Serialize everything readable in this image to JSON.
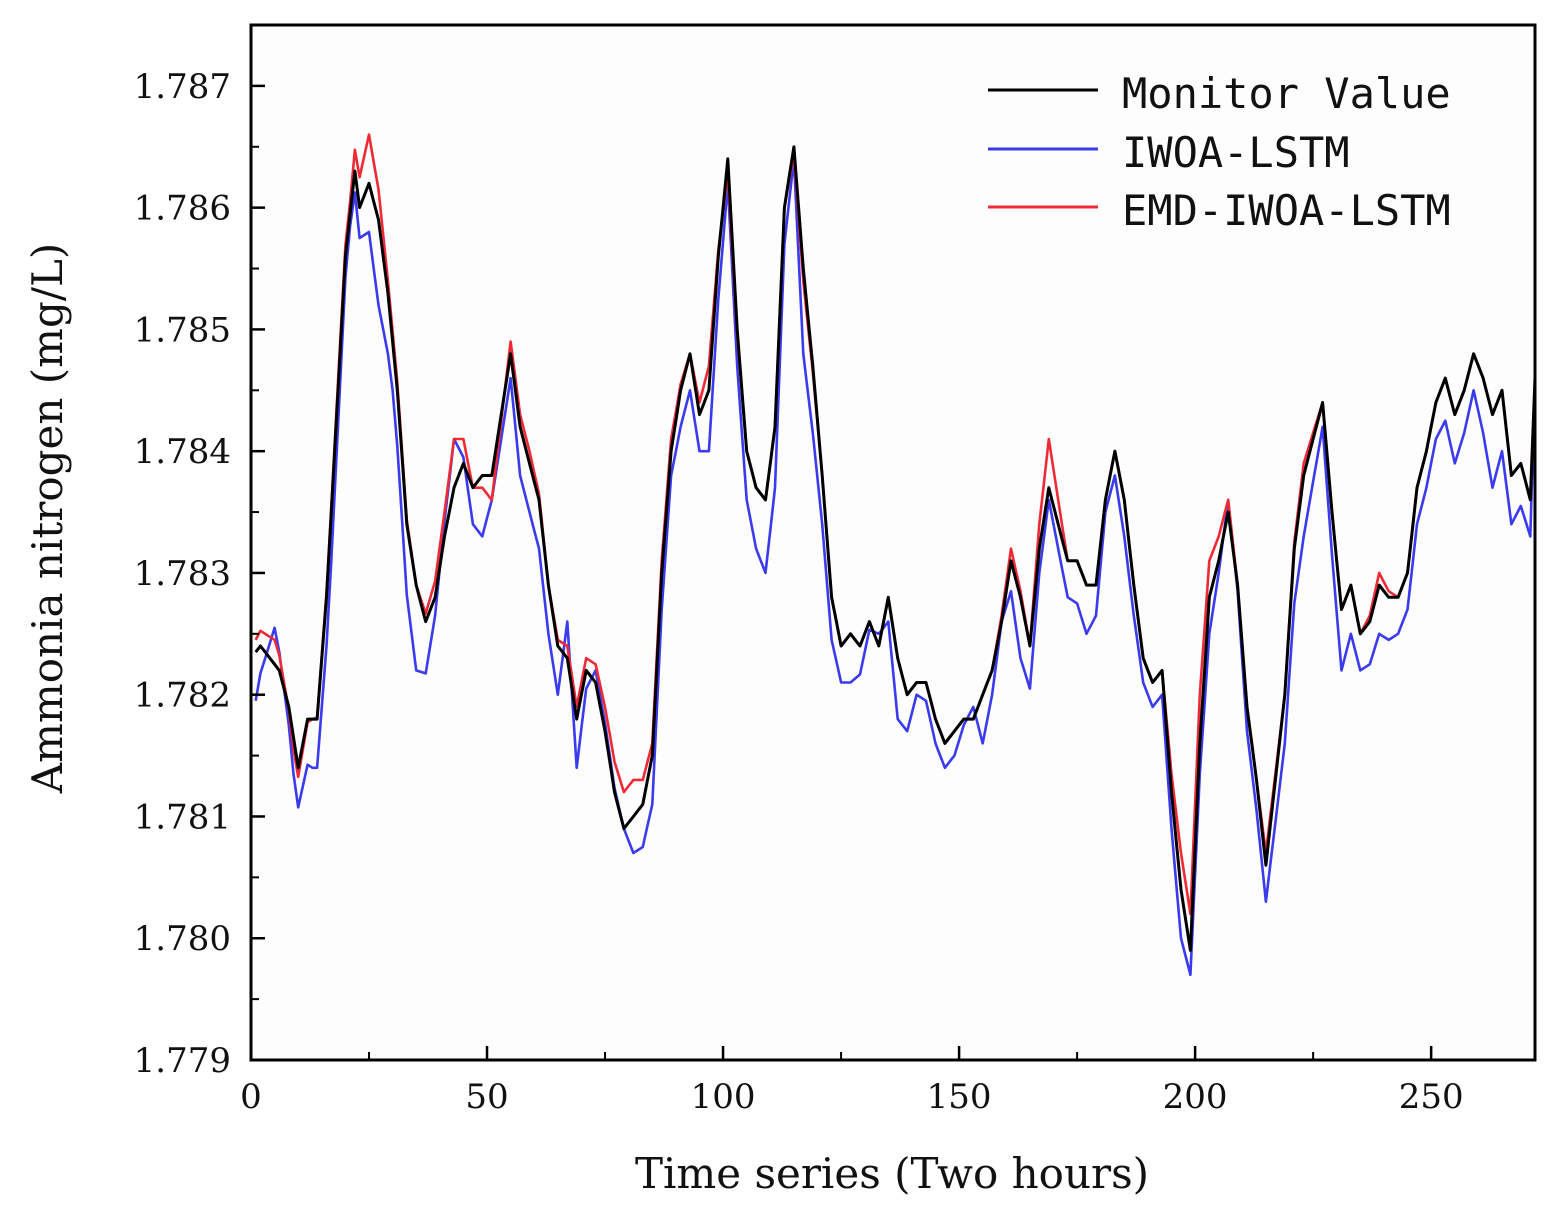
{
  "chart_data": {
    "type": "line",
    "title": "",
    "xlabel": "Time series (Two hours)",
    "ylabel": "Ammonia nitrogen (mg/L)",
    "xlim": [
      0,
      272
    ],
    "ylim": [
      1.779,
      1.7875
    ],
    "xticks": [
      0,
      50,
      100,
      150,
      200,
      250
    ],
    "xtick_labels": [
      "0",
      "50",
      "100",
      "150",
      "200",
      "250"
    ],
    "yticks": [
      1.779,
      1.78,
      1.781,
      1.782,
      1.783,
      1.784,
      1.785,
      1.786,
      1.787
    ],
    "ytick_labels": [
      "1.779",
      "1.780",
      "1.781",
      "1.782",
      "1.783",
      "1.784",
      "1.785",
      "1.786",
      "1.787"
    ],
    "grid": false,
    "legend_position": "top-right",
    "anchors": [
      [
        0,
        1.7823
      ],
      [
        2,
        1.7824
      ],
      [
        4,
        1.7823
      ],
      [
        6,
        1.7822
      ],
      [
        8,
        1.7819
      ],
      [
        10,
        1.7814
      ],
      [
        12,
        1.7818
      ],
      [
        14,
        1.7818
      ],
      [
        16,
        1.7828
      ],
      [
        18,
        1.7842
      ],
      [
        20,
        1.7856
      ],
      [
        22,
        1.7863
      ],
      [
        23,
        1.786
      ],
      [
        25,
        1.7862
      ],
      [
        27,
        1.7859
      ],
      [
        29,
        1.7853
      ],
      [
        31,
        1.7845
      ],
      [
        33,
        1.7834
      ],
      [
        35,
        1.7829
      ],
      [
        37,
        1.7826
      ],
      [
        39,
        1.7828
      ],
      [
        41,
        1.7833
      ],
      [
        43,
        1.7837
      ],
      [
        45,
        1.7839
      ],
      [
        47,
        1.7837
      ],
      [
        49,
        1.7838
      ],
      [
        51,
        1.7838
      ],
      [
        53,
        1.7843
      ],
      [
        55,
        1.7848
      ],
      [
        57,
        1.7842
      ],
      [
        59,
        1.7839
      ],
      [
        61,
        1.7836
      ],
      [
        63,
        1.7829
      ],
      [
        65,
        1.7824
      ],
      [
        67,
        1.7823
      ],
      [
        69,
        1.7818
      ],
      [
        71,
        1.7822
      ],
      [
        73,
        1.7821
      ],
      [
        75,
        1.7817
      ],
      [
        77,
        1.7812
      ],
      [
        79,
        1.7809
      ],
      [
        81,
        1.781
      ],
      [
        83,
        1.7811
      ],
      [
        85,
        1.7815
      ],
      [
        87,
        1.783
      ],
      [
        89,
        1.784
      ],
      [
        91,
        1.7845
      ],
      [
        93,
        1.7848
      ],
      [
        95,
        1.7843
      ],
      [
        97,
        1.7845
      ],
      [
        99,
        1.7856
      ],
      [
        101,
        1.7864
      ],
      [
        103,
        1.785
      ],
      [
        105,
        1.784
      ],
      [
        107,
        1.7837
      ],
      [
        109,
        1.7836
      ],
      [
        111,
        1.7842
      ],
      [
        113,
        1.786
      ],
      [
        115,
        1.7865
      ],
      [
        117,
        1.7855
      ],
      [
        119,
        1.7847
      ],
      [
        121,
        1.7838
      ],
      [
        123,
        1.7828
      ],
      [
        125,
        1.7824
      ],
      [
        127,
        1.7825
      ],
      [
        129,
        1.7824
      ],
      [
        131,
        1.7826
      ],
      [
        133,
        1.7824
      ],
      [
        135,
        1.7828
      ],
      [
        137,
        1.7823
      ],
      [
        139,
        1.782
      ],
      [
        141,
        1.7821
      ],
      [
        143,
        1.7821
      ],
      [
        145,
        1.7818
      ],
      [
        147,
        1.7816
      ],
      [
        149,
        1.7817
      ],
      [
        151,
        1.7818
      ],
      [
        153,
        1.7818
      ],
      [
        155,
        1.782
      ],
      [
        157,
        1.7822
      ],
      [
        159,
        1.7826
      ],
      [
        161,
        1.7831
      ],
      [
        163,
        1.7828
      ],
      [
        165,
        1.7824
      ],
      [
        167,
        1.7832
      ],
      [
        169,
        1.7837
      ],
      [
        171,
        1.7834
      ],
      [
        173,
        1.7831
      ],
      [
        175,
        1.7831
      ],
      [
        177,
        1.7829
      ],
      [
        179,
        1.7829
      ],
      [
        181,
        1.7836
      ],
      [
        183,
        1.784
      ],
      [
        185,
        1.7836
      ],
      [
        187,
        1.7829
      ],
      [
        189,
        1.7823
      ],
      [
        191,
        1.7821
      ],
      [
        193,
        1.7822
      ],
      [
        195,
        1.7812
      ],
      [
        197,
        1.7804
      ],
      [
        199,
        1.7799
      ],
      [
        201,
        1.7816
      ],
      [
        203,
        1.7828
      ],
      [
        205,
        1.7831
      ],
      [
        207,
        1.7835
      ],
      [
        209,
        1.7829
      ],
      [
        211,
        1.7819
      ],
      [
        213,
        1.7813
      ],
      [
        215,
        1.7806
      ],
      [
        217,
        1.7813
      ],
      [
        219,
        1.782
      ],
      [
        221,
        1.7832
      ],
      [
        223,
        1.7838
      ],
      [
        225,
        1.7841
      ],
      [
        227,
        1.7844
      ],
      [
        229,
        1.7835
      ],
      [
        231,
        1.7827
      ],
      [
        233,
        1.7829
      ],
      [
        235,
        1.7825
      ],
      [
        237,
        1.7826
      ],
      [
        239,
        1.7829
      ],
      [
        241,
        1.7828
      ],
      [
        243,
        1.7828
      ],
      [
        245,
        1.783
      ],
      [
        247,
        1.7837
      ],
      [
        249,
        1.784
      ],
      [
        251,
        1.7844
      ],
      [
        253,
        1.7846
      ],
      [
        255,
        1.7843
      ],
      [
        257,
        1.7845
      ],
      [
        259,
        1.7848
      ],
      [
        261,
        1.7846
      ],
      [
        263,
        1.7843
      ],
      [
        265,
        1.7845
      ],
      [
        267,
        1.7838
      ],
      [
        269,
        1.7839
      ],
      [
        271,
        1.7836
      ],
      [
        272,
        1.7846
      ]
    ],
    "series": [
      {
        "name": "Monitor Value",
        "color": "#000000",
        "offsets": [
          [
            1,
            0.0
          ]
        ]
      },
      {
        "name": "IWOA-LSTM",
        "color": "#3a3aee",
        "offsets": [
          [
            1,
            -0.0004
          ],
          [
            5,
            0.0003
          ],
          [
            9,
            -0.0003
          ],
          [
            13,
            -0.0004
          ],
          [
            17,
            -0.0004
          ],
          [
            21,
            -0.0001
          ],
          [
            25,
            -0.0004
          ],
          [
            27,
            -0.0007
          ],
          [
            30,
            -0.0004
          ],
          [
            35,
            -0.0007
          ],
          [
            43,
            0.0004
          ],
          [
            47,
            -0.0003
          ],
          [
            49,
            -0.0005
          ],
          [
            51,
            -0.0002
          ],
          [
            55,
            -0.0002
          ],
          [
            57,
            -0.0004
          ],
          [
            61,
            -0.0004
          ],
          [
            65,
            -0.0004
          ],
          [
            67,
            0.0003
          ],
          [
            69,
            -0.0004
          ],
          [
            73,
            0.0001
          ],
          [
            79,
            0.0
          ],
          [
            81,
            -0.0003
          ],
          [
            85,
            -0.0004
          ],
          [
            89,
            -0.0002
          ],
          [
            91,
            -0.0003
          ],
          [
            95,
            -0.0003
          ],
          [
            97,
            -0.0005
          ],
          [
            101,
            -0.0002
          ],
          [
            105,
            -0.0004
          ],
          [
            109,
            -0.0006
          ],
          [
            111,
            -0.0005
          ],
          [
            115,
            -0.0001
          ],
          [
            117,
            -0.0007
          ],
          [
            121,
            -0.0004
          ],
          [
            125,
            -0.0003
          ],
          [
            127,
            -0.0004
          ],
          [
            133,
            0.0001
          ],
          [
            137,
            -0.0005
          ],
          [
            141,
            -0.0001
          ],
          [
            145,
            -0.0002
          ],
          [
            149,
            -0.0002
          ],
          [
            153,
            0.0001
          ],
          [
            155,
            -0.0004
          ],
          [
            159,
            0.0
          ],
          [
            163,
            -0.0005
          ],
          [
            167,
            -0.0002
          ],
          [
            169,
            -0.0001
          ],
          [
            173,
            -0.0003
          ],
          [
            177,
            -0.0004
          ],
          [
            181,
            -0.0001
          ],
          [
            185,
            -0.0003
          ],
          [
            189,
            -0.0002
          ],
          [
            193,
            -0.0002
          ],
          [
            197,
            -0.0004
          ],
          [
            199,
            -0.0002
          ],
          [
            203,
            -0.0003
          ],
          [
            207,
            0.0001
          ],
          [
            211,
            -0.0002
          ],
          [
            215,
            -0.0003
          ],
          [
            219,
            -0.0004
          ],
          [
            223,
            -0.0005
          ],
          [
            227,
            -0.0002
          ],
          [
            231,
            -0.0005
          ],
          [
            235,
            -0.0003
          ],
          [
            239,
            -0.0004
          ],
          [
            243,
            -0.0003
          ],
          [
            247,
            -0.0003
          ],
          [
            251,
            -0.0003
          ],
          [
            255,
            -0.0004
          ],
          [
            259,
            -0.0003
          ],
          [
            263,
            -0.0006
          ],
          [
            267,
            -0.0004
          ],
          [
            271,
            -0.0003
          ],
          [
            272,
            0.0
          ]
        ]
      },
      {
        "name": "EMD-IWOA-LSTM",
        "color": "#ee2a36",
        "offsets": [
          [
            1,
            0.0001
          ],
          [
            5,
            0.0002
          ],
          [
            9,
            -0.0001
          ],
          [
            13,
            0.0
          ],
          [
            21,
            0.0001
          ],
          [
            25,
            0.0004
          ],
          [
            29,
            0.0001
          ],
          [
            35,
            0.0
          ],
          [
            41,
            0.0002
          ],
          [
            43,
            0.0004
          ],
          [
            47,
            0.0
          ],
          [
            51,
            -0.0002
          ],
          [
            55,
            0.0001
          ],
          [
            59,
            0.0001
          ],
          [
            63,
            0.0
          ],
          [
            67,
            0.0001
          ],
          [
            71,
            0.0001
          ],
          [
            75,
            0.0002
          ],
          [
            79,
            0.0003
          ],
          [
            81,
            0.0003
          ],
          [
            85,
            0.0001
          ],
          [
            89,
            0.0001
          ],
          [
            93,
            0.0
          ],
          [
            97,
            0.0002
          ],
          [
            101,
            -0.0001
          ],
          [
            105,
            0.0
          ],
          [
            109,
            0.0
          ],
          [
            113,
            0.0
          ],
          [
            117,
            -0.0001
          ],
          [
            121,
            0.0
          ],
          [
            125,
            0.0
          ],
          [
            129,
            0.0
          ],
          [
            133,
            0.0
          ],
          [
            137,
            0.0
          ],
          [
            141,
            0.0
          ],
          [
            145,
            0.0
          ],
          [
            149,
            0.0
          ],
          [
            153,
            0.0
          ],
          [
            157,
            0.0
          ],
          [
            161,
            0.0001
          ],
          [
            165,
            0.0
          ],
          [
            169,
            0.0004
          ],
          [
            173,
            0.0
          ],
          [
            177,
            0.0
          ],
          [
            181,
            0.0
          ],
          [
            185,
            0.0
          ],
          [
            189,
            0.0
          ],
          [
            193,
            0.0
          ],
          [
            197,
            0.0003
          ],
          [
            199,
            0.0003
          ],
          [
            201,
            0.0004
          ],
          [
            205,
            0.0002
          ],
          [
            209,
            0.0
          ],
          [
            213,
            0.0
          ],
          [
            215,
            0.0001
          ],
          [
            219,
            0.0
          ],
          [
            223,
            0.0001
          ],
          [
            227,
            0.0
          ],
          [
            231,
            0.0
          ],
          [
            235,
            0.0
          ],
          [
            239,
            0.0001
          ],
          [
            243,
            0.0
          ],
          [
            247,
            0.0
          ],
          [
            251,
            0.0
          ],
          [
            255,
            0.0
          ],
          [
            259,
            0.0
          ],
          [
            263,
            0.0
          ],
          [
            267,
            0.0
          ],
          [
            271,
            0.0
          ],
          [
            272,
            -0.0001
          ]
        ]
      }
    ]
  }
}
